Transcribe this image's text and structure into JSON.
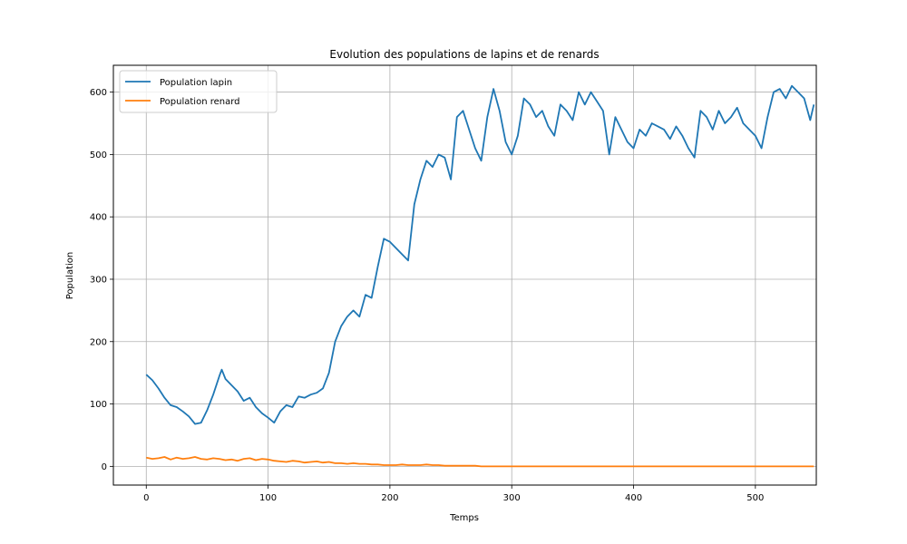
{
  "chart_data": {
    "type": "line",
    "title": "Evolution des populations de lapins et de renards",
    "xlabel": "Temps",
    "ylabel": "Population",
    "xlim": [
      -27,
      550
    ],
    "ylim": [
      -30,
      643
    ],
    "xticks": [
      0,
      100,
      200,
      300,
      400,
      500
    ],
    "yticks": [
      0,
      100,
      200,
      300,
      400,
      500,
      600
    ],
    "xtick_labels": [
      "0",
      "100",
      "200",
      "300",
      "400",
      "500"
    ],
    "ytick_labels": [
      "0",
      "100",
      "200",
      "300",
      "400",
      "500",
      "600"
    ],
    "grid": true,
    "legend_position": "upper-left",
    "series": [
      {
        "name": "Population lapin",
        "color": "#1f77b4",
        "x": [
          0,
          5,
          10,
          15,
          20,
          25,
          30,
          35,
          40,
          45,
          50,
          55,
          60,
          62,
          65,
          70,
          75,
          80,
          85,
          90,
          95,
          100,
          105,
          110,
          115,
          120,
          125,
          130,
          135,
          140,
          145,
          150,
          155,
          160,
          165,
          170,
          175,
          180,
          185,
          190,
          195,
          200,
          205,
          210,
          215,
          220,
          225,
          230,
          235,
          240,
          245,
          250,
          255,
          260,
          265,
          270,
          275,
          280,
          285,
          290,
          295,
          300,
          305,
          310,
          315,
          320,
          325,
          330,
          335,
          340,
          345,
          350,
          355,
          360,
          365,
          370,
          375,
          380,
          385,
          390,
          395,
          400,
          405,
          410,
          415,
          420,
          425,
          430,
          435,
          440,
          445,
          450,
          455,
          460,
          465,
          470,
          475,
          480,
          485,
          490,
          495,
          500,
          505,
          510,
          515,
          520,
          525,
          530,
          535,
          540,
          545,
          548
        ],
        "y": [
          147,
          138,
          125,
          110,
          98,
          95,
          88,
          80,
          68,
          70,
          90,
          115,
          145,
          155,
          140,
          130,
          120,
          105,
          110,
          95,
          85,
          78,
          70,
          88,
          98,
          95,
          112,
          110,
          115,
          118,
          125,
          150,
          200,
          225,
          240,
          250,
          240,
          275,
          270,
          320,
          365,
          360,
          350,
          340,
          330,
          420,
          460,
          490,
          480,
          500,
          495,
          460,
          560,
          570,
          540,
          510,
          490,
          560,
          605,
          570,
          520,
          500,
          530,
          590,
          580,
          560,
          570,
          545,
          530,
          580,
          570,
          555,
          600,
          580,
          600,
          585,
          570,
          500,
          560,
          540,
          520,
          510,
          540,
          530,
          550,
          545,
          540,
          525,
          545,
          530,
          510,
          495,
          570,
          560,
          540,
          570,
          550,
          560,
          575,
          550,
          540,
          530,
          510,
          560,
          600,
          605,
          590,
          610,
          600,
          590,
          555,
          580
        ]
      },
      {
        "name": "Population renard",
        "color": "#ff7f0e",
        "x": [
          0,
          5,
          10,
          15,
          20,
          25,
          30,
          35,
          40,
          45,
          50,
          55,
          60,
          65,
          70,
          75,
          80,
          85,
          90,
          95,
          100,
          105,
          110,
          115,
          120,
          125,
          130,
          135,
          140,
          145,
          150,
          155,
          160,
          165,
          170,
          175,
          180,
          185,
          190,
          195,
          200,
          205,
          210,
          215,
          220,
          225,
          230,
          235,
          240,
          245,
          250,
          255,
          260,
          265,
          270,
          275,
          280,
          300,
          350,
          400,
          450,
          500,
          548
        ],
        "y": [
          14,
          12,
          13,
          15,
          11,
          14,
          12,
          13,
          15,
          12,
          11,
          13,
          12,
          10,
          11,
          9,
          12,
          13,
          10,
          12,
          11,
          9,
          8,
          7,
          9,
          8,
          6,
          7,
          8,
          6,
          7,
          5,
          5,
          4,
          5,
          4,
          4,
          3,
          3,
          2,
          2,
          2,
          3,
          2,
          2,
          2,
          3,
          2,
          2,
          1,
          1,
          1,
          1,
          1,
          1,
          0,
          0,
          0,
          0,
          0,
          0,
          0,
          0
        ]
      }
    ]
  }
}
